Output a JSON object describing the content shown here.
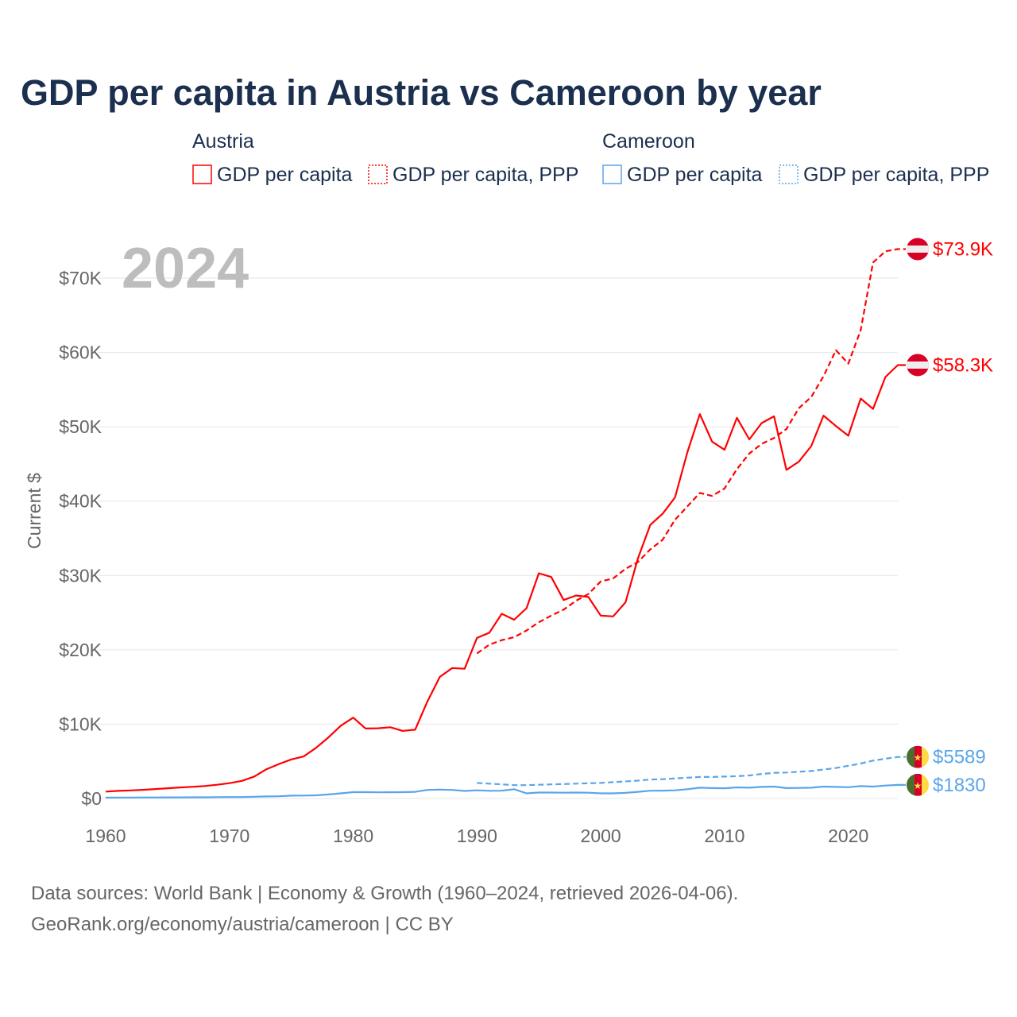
{
  "chart_data": {
    "type": "line",
    "title": "GDP per capita in Austria vs Cameroon by year",
    "ylabel": "Current $",
    "xlabel": "",
    "xlim": [
      1960,
      2024
    ],
    "ylim": [
      0,
      70000
    ],
    "x_ticks": [
      "1960",
      "1970",
      "1980",
      "1990",
      "2000",
      "2010",
      "2020"
    ],
    "y_ticks": [
      "$0",
      "$10K",
      "$20K",
      "$30K",
      "$40K",
      "$50K",
      "$60K",
      "$70K"
    ],
    "grid": true,
    "year_label": "2024",
    "legend": {
      "placement": "top",
      "groups": [
        {
          "name": "Austria",
          "items": [
            "GDP per capita",
            "GDP per capita, PPP"
          ]
        },
        {
          "name": "Cameroon",
          "items": [
            "GDP per capita",
            "GDP per capita, PPP"
          ]
        }
      ]
    },
    "colors": {
      "Austria": "#ff0000",
      "Cameroon": "#5aa5ea"
    },
    "series": [
      {
        "name": "Austria GDP per capita",
        "country": "Austria",
        "style": "solid",
        "start": 1960,
        "end_label": "$58.3K",
        "values": [
          935,
          1031,
          1087,
          1167,
          1269,
          1374,
          1487,
          1569,
          1677,
          1845,
          2059,
          2370,
          2950,
          3944,
          4641,
          5257,
          5669,
          6820,
          8216,
          9797,
          10877,
          9420,
          9445,
          9590,
          9093,
          9250,
          13070,
          16360,
          17550,
          17450,
          21600,
          22300,
          24850,
          24050,
          25600,
          30300,
          29800,
          26700,
          27300,
          27100,
          24600,
          24500,
          26400,
          32300,
          36800,
          38300,
          40500,
          46600,
          51700,
          48000,
          46900,
          51200,
          48300,
          50500,
          51400,
          44200,
          45300,
          47400,
          51500,
          50100,
          48800,
          53800,
          52400,
          56700,
          58300
        ]
      },
      {
        "name": "Austria GDP per capita, PPP",
        "country": "Austria",
        "style": "dashed",
        "start": 1990,
        "end_label": "$73.9K",
        "values": [
          19500,
          20700,
          21300,
          21700,
          22600,
          23700,
          24600,
          25400,
          26600,
          27500,
          29200,
          29600,
          30900,
          31800,
          33500,
          34800,
          37500,
          39300,
          41100,
          40700,
          41700,
          44300,
          46400,
          47700,
          48500,
          49700,
          52500,
          54000,
          56800,
          60300,
          58500,
          63000,
          72100,
          73600,
          73900
        ]
      },
      {
        "name": "Cameroon GDP per capita",
        "country": "Cameroon",
        "style": "solid",
        "start": 1960,
        "end_label": "$1830",
        "values": [
          120,
          125,
          130,
          135,
          140,
          145,
          150,
          155,
          165,
          180,
          190,
          195,
          230,
          280,
          300,
          380,
          400,
          430,
          550,
          700,
          850,
          860,
          830,
          840,
          850,
          900,
          1150,
          1200,
          1150,
          1020,
          1100,
          1040,
          1050,
          1250,
          700,
          800,
          800,
          780,
          800,
          780,
          700,
          700,
          760,
          900,
          1050,
          1060,
          1100,
          1250,
          1450,
          1400,
          1380,
          1500,
          1450,
          1560,
          1600,
          1400,
          1420,
          1450,
          1600,
          1560,
          1520,
          1670,
          1600,
          1740,
          1830
        ]
      },
      {
        "name": "Cameroon GDP per capita, PPP",
        "country": "Cameroon",
        "style": "dashed",
        "start": 1990,
        "end_label": "$5589",
        "values": [
          2100,
          2000,
          1900,
          1800,
          1800,
          1850,
          1900,
          1950,
          2000,
          2050,
          2100,
          2200,
          2300,
          2400,
          2550,
          2600,
          2700,
          2800,
          2900,
          2900,
          2950,
          3000,
          3100,
          3300,
          3450,
          3500,
          3600,
          3700,
          3900,
          4100,
          4400,
          4700,
          5100,
          5350,
          5589
        ]
      }
    ]
  },
  "footer": {
    "line1": "Data sources: World Bank | Economy & Growth (1960–2024, retrieved 2026-04-06).",
    "line2": "GeoRank.org/economy/austria/cameroon | CC BY"
  }
}
